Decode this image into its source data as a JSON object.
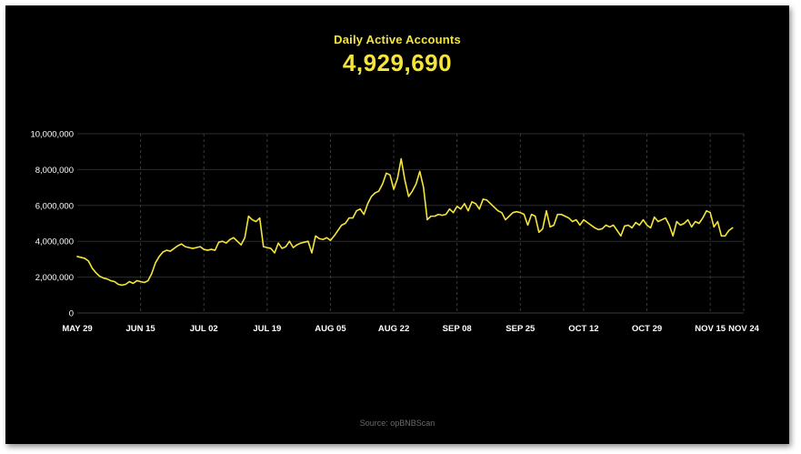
{
  "header": {
    "title": "Daily Active Accounts",
    "value": "4,929,690"
  },
  "footer": {
    "source": "Source: opBNBScan"
  },
  "chart_data": {
    "type": "line",
    "title": "Daily Active Accounts",
    "xlabel": "",
    "ylabel": "",
    "ylim": [
      0,
      10000000
    ],
    "grid": true,
    "y_ticks": [
      {
        "value": 0,
        "label": "0"
      },
      {
        "value": 2000000,
        "label": "2,000,000"
      },
      {
        "value": 4000000,
        "label": "4,000,000"
      },
      {
        "value": 6000000,
        "label": "6,000,000"
      },
      {
        "value": 8000000,
        "label": "8,000,000"
      },
      {
        "value": 10000000,
        "label": "10,000,000"
      }
    ],
    "x_ticks": [
      {
        "day": 0,
        "label": "MAY 29"
      },
      {
        "day": 17,
        "label": "JUN 15"
      },
      {
        "day": 34,
        "label": "JUL 02"
      },
      {
        "day": 51,
        "label": "JUL 19"
      },
      {
        "day": 68,
        "label": "AUG 05"
      },
      {
        "day": 85,
        "label": "AUG 22"
      },
      {
        "day": 102,
        "label": "SEP 08"
      },
      {
        "day": 119,
        "label": "SEP 25"
      },
      {
        "day": 136,
        "label": "OCT 12"
      },
      {
        "day": 153,
        "label": "OCT 29"
      },
      {
        "day": 170,
        "label": "NOV 15"
      },
      {
        "day": 179,
        "label": "NOV 24"
      }
    ],
    "x_start_date": "2023-05-29",
    "series": [
      {
        "name": "",
        "color": "#f5e53a",
        "points": [
          [
            0,
            3150000
          ],
          [
            2,
            3050000
          ],
          [
            3,
            2900000
          ],
          [
            4,
            2500000
          ],
          [
            5,
            2250000
          ],
          [
            6,
            2050000
          ],
          [
            7,
            1950000
          ],
          [
            8,
            1900000
          ],
          [
            9,
            1800000
          ],
          [
            10,
            1750000
          ],
          [
            11,
            1600000
          ],
          [
            12,
            1550000
          ],
          [
            13,
            1600000
          ],
          [
            14,
            1750000
          ],
          [
            15,
            1650000
          ],
          [
            16,
            1800000
          ],
          [
            17,
            1750000
          ],
          [
            18,
            1700000
          ],
          [
            19,
            1800000
          ],
          [
            20,
            2200000
          ],
          [
            21,
            2800000
          ],
          [
            22,
            3150000
          ],
          [
            23,
            3400000
          ],
          [
            24,
            3500000
          ],
          [
            25,
            3450000
          ],
          [
            26,
            3600000
          ],
          [
            27,
            3750000
          ],
          [
            28,
            3850000
          ],
          [
            29,
            3700000
          ],
          [
            30,
            3650000
          ],
          [
            31,
            3600000
          ],
          [
            32,
            3650000
          ],
          [
            33,
            3700000
          ],
          [
            34,
            3550000
          ],
          [
            35,
            3500000
          ],
          [
            36,
            3550000
          ],
          [
            37,
            3500000
          ],
          [
            38,
            3950000
          ],
          [
            39,
            4000000
          ],
          [
            40,
            3900000
          ],
          [
            41,
            4100000
          ],
          [
            42,
            4200000
          ],
          [
            43,
            4000000
          ],
          [
            44,
            3800000
          ],
          [
            45,
            4200000
          ],
          [
            46,
            5400000
          ],
          [
            47,
            5200000
          ],
          [
            48,
            5100000
          ],
          [
            49,
            5300000
          ],
          [
            50,
            3700000
          ],
          [
            51,
            3650000
          ],
          [
            52,
            3600000
          ],
          [
            53,
            3350000
          ],
          [
            54,
            3900000
          ],
          [
            55,
            3600000
          ],
          [
            56,
            3700000
          ],
          [
            57,
            4000000
          ],
          [
            58,
            3650000
          ],
          [
            59,
            3800000
          ],
          [
            60,
            3900000
          ],
          [
            61,
            3950000
          ],
          [
            62,
            4000000
          ],
          [
            63,
            3350000
          ],
          [
            64,
            4300000
          ],
          [
            65,
            4150000
          ],
          [
            66,
            4100000
          ],
          [
            67,
            4200000
          ],
          [
            68,
            4050000
          ],
          [
            69,
            4300000
          ],
          [
            70,
            4600000
          ],
          [
            71,
            4900000
          ],
          [
            72,
            5000000
          ],
          [
            73,
            5300000
          ],
          [
            74,
            5300000
          ],
          [
            75,
            5700000
          ],
          [
            76,
            5800000
          ],
          [
            77,
            5500000
          ],
          [
            78,
            6100000
          ],
          [
            79,
            6500000
          ],
          [
            80,
            6700000
          ],
          [
            81,
            6800000
          ],
          [
            82,
            7200000
          ],
          [
            83,
            7800000
          ],
          [
            84,
            7700000
          ],
          [
            85,
            6900000
          ],
          [
            86,
            7500000
          ],
          [
            87,
            8600000
          ],
          [
            88,
            7400000
          ],
          [
            89,
            6500000
          ],
          [
            90,
            6800000
          ],
          [
            91,
            7200000
          ],
          [
            92,
            7900000
          ],
          [
            93,
            7000000
          ],
          [
            94,
            5200000
          ],
          [
            95,
            5400000
          ],
          [
            96,
            5400000
          ],
          [
            97,
            5500000
          ],
          [
            98,
            5450000
          ],
          [
            99,
            5500000
          ],
          [
            100,
            5800000
          ],
          [
            101,
            5600000
          ],
          [
            102,
            5950000
          ],
          [
            103,
            5800000
          ],
          [
            104,
            6100000
          ],
          [
            105,
            5700000
          ],
          [
            106,
            6200000
          ],
          [
            107,
            6100000
          ],
          [
            108,
            5800000
          ],
          [
            109,
            6350000
          ],
          [
            110,
            6300000
          ],
          [
            111,
            6100000
          ],
          [
            112,
            5900000
          ],
          [
            113,
            5700000
          ],
          [
            114,
            5600000
          ],
          [
            115,
            5200000
          ],
          [
            116,
            5400000
          ],
          [
            117,
            5600000
          ],
          [
            118,
            5650000
          ],
          [
            119,
            5600000
          ],
          [
            120,
            5500000
          ],
          [
            121,
            4900000
          ],
          [
            122,
            5500000
          ],
          [
            123,
            5400000
          ],
          [
            124,
            4500000
          ],
          [
            125,
            4700000
          ],
          [
            126,
            5700000
          ],
          [
            127,
            4800000
          ],
          [
            128,
            4900000
          ],
          [
            129,
            5500000
          ],
          [
            130,
            5500000
          ],
          [
            131,
            5400000
          ],
          [
            132,
            5300000
          ],
          [
            133,
            5100000
          ],
          [
            134,
            5200000
          ],
          [
            135,
            4900000
          ],
          [
            136,
            5200000
          ],
          [
            137,
            5050000
          ],
          [
            138,
            4900000
          ],
          [
            139,
            4750000
          ],
          [
            140,
            4650000
          ],
          [
            141,
            4700000
          ],
          [
            142,
            4900000
          ],
          [
            143,
            4800000
          ],
          [
            144,
            4900000
          ],
          [
            145,
            4600000
          ],
          [
            146,
            4300000
          ],
          [
            147,
            4850000
          ],
          [
            148,
            4900000
          ],
          [
            149,
            4750000
          ],
          [
            150,
            5050000
          ],
          [
            151,
            4900000
          ],
          [
            152,
            5200000
          ],
          [
            153,
            4900000
          ],
          [
            154,
            4750000
          ],
          [
            155,
            5350000
          ],
          [
            156,
            5100000
          ],
          [
            157,
            5200000
          ],
          [
            158,
            5300000
          ],
          [
            159,
            4900000
          ],
          [
            160,
            4300000
          ],
          [
            161,
            5100000
          ],
          [
            162,
            4900000
          ],
          [
            163,
            5000000
          ],
          [
            164,
            5200000
          ],
          [
            165,
            4800000
          ],
          [
            166,
            5100000
          ],
          [
            167,
            5000000
          ],
          [
            168,
            5300000
          ],
          [
            169,
            5700000
          ],
          [
            170,
            5600000
          ],
          [
            171,
            4800000
          ],
          [
            172,
            5100000
          ],
          [
            173,
            4300000
          ],
          [
            174,
            4300000
          ],
          [
            175,
            4600000
          ],
          [
            176,
            4750000
          ]
        ]
      }
    ]
  }
}
